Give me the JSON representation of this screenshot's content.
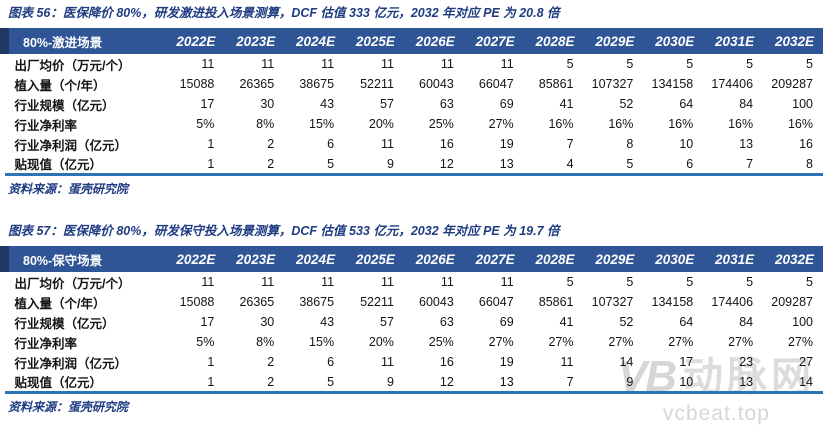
{
  "colors": {
    "title_blue": "#1F3C82",
    "table_header_bg": "#2F5597",
    "table_header_left_edge": "#1F3864",
    "table_bottom_border": "#2E74B5",
    "watermark_gray": "#D9D9D9"
  },
  "figures": [
    {
      "title": "图表 56：医保降价 80%，研发激进投入场景测算，DCF 估值 333 亿元，2032 年对应 PE 为 20.8 倍",
      "source": "资料来源：蛋壳研究院",
      "table": {
        "scenario_label": "80%-激进场景",
        "columns": [
          "2022E",
          "2023E",
          "2024E",
          "2025E",
          "2026E",
          "2027E",
          "2028E",
          "2029E",
          "2030E",
          "2031E",
          "2032E"
        ],
        "rows": [
          {
            "label": "出厂均价（万元/个）",
            "values": [
              "11",
              "11",
              "11",
              "11",
              "11",
              "11",
              "5",
              "5",
              "5",
              "5",
              "5"
            ]
          },
          {
            "label": "植入量（个/年）",
            "values": [
              "15088",
              "26365",
              "38675",
              "52211",
              "60043",
              "66047",
              "85861",
              "107327",
              "134158",
              "174406",
              "209287"
            ]
          },
          {
            "label": "行业规模（亿元）",
            "values": [
              "17",
              "30",
              "43",
              "57",
              "63",
              "69",
              "41",
              "52",
              "64",
              "84",
              "100"
            ]
          },
          {
            "label": "行业净利率",
            "values": [
              "5%",
              "8%",
              "15%",
              "20%",
              "25%",
              "27%",
              "16%",
              "16%",
              "16%",
              "16%",
              "16%"
            ]
          },
          {
            "label": "行业净利润（亿元）",
            "values": [
              "1",
              "2",
              "6",
              "11",
              "16",
              "19",
              "7",
              "8",
              "10",
              "13",
              "16"
            ]
          },
          {
            "label": "贴现值（亿元）",
            "values": [
              "1",
              "2",
              "5",
              "9",
              "12",
              "13",
              "4",
              "5",
              "6",
              "7",
              "8"
            ]
          }
        ]
      }
    },
    {
      "title": "图表 57：医保降价 80%，研发保守投入场景测算，DCF 估值 533 亿元，2032 年对应 PE 为 19.7 倍",
      "source": "资料来源：蛋壳研究院",
      "table": {
        "scenario_label": "80%-保守场景",
        "columns": [
          "2022E",
          "2023E",
          "2024E",
          "2025E",
          "2026E",
          "2027E",
          "2028E",
          "2029E",
          "2030E",
          "2031E",
          "2032E"
        ],
        "rows": [
          {
            "label": "出厂均价（万元/个）",
            "values": [
              "11",
              "11",
              "11",
              "11",
              "11",
              "11",
              "5",
              "5",
              "5",
              "5",
              "5"
            ]
          },
          {
            "label": "植入量（个/年）",
            "values": [
              "15088",
              "26365",
              "38675",
              "52211",
              "60043",
              "66047",
              "85861",
              "107327",
              "134158",
              "174406",
              "209287"
            ]
          },
          {
            "label": "行业规模（亿元）",
            "values": [
              "17",
              "30",
              "43",
              "57",
              "63",
              "69",
              "41",
              "52",
              "64",
              "84",
              "100"
            ]
          },
          {
            "label": "行业净利率",
            "values": [
              "5%",
              "8%",
              "15%",
              "20%",
              "25%",
              "27%",
              "27%",
              "27%",
              "27%",
              "27%",
              "27%"
            ]
          },
          {
            "label": "行业净利润（亿元）",
            "values": [
              "1",
              "2",
              "6",
              "11",
              "16",
              "19",
              "11",
              "14",
              "17",
              "23",
              "27"
            ]
          },
          {
            "label": "贴现值（亿元）",
            "values": [
              "1",
              "2",
              "5",
              "9",
              "12",
              "13",
              "7",
              "9",
              "10",
              "13",
              "14"
            ]
          }
        ]
      }
    }
  ],
  "watermark": {
    "logo_text": "VB",
    "brand": "动脉网",
    "site": "vcbeat.top"
  }
}
